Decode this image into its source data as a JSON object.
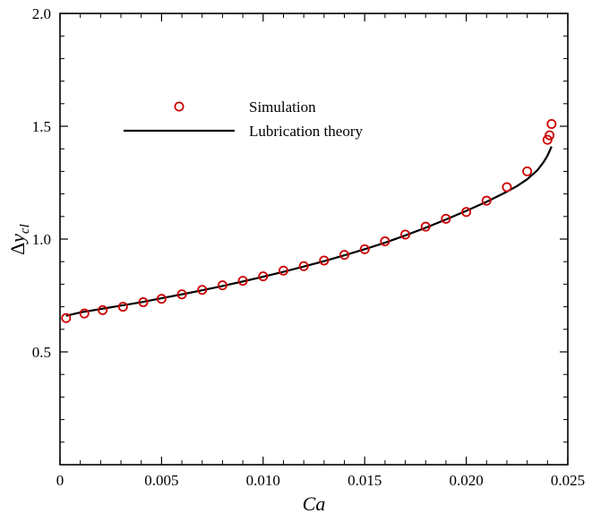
{
  "chart_data": {
    "type": "scatter",
    "x_axis": {
      "label": "Ca",
      "range": [
        0,
        0.025
      ],
      "ticks": [
        0,
        0.005,
        0.01,
        0.015,
        0.02,
        0.025
      ],
      "tick_labels": [
        "0",
        "0.005",
        "0.010",
        "0.015",
        "0.020",
        "0.025"
      ]
    },
    "y_axis": {
      "label_prefix": "Δ",
      "label_main": "y",
      "label_subscript": "cl",
      "range": [
        0,
        2.0
      ],
      "ticks": [
        0.5,
        1.0,
        1.5,
        2.0
      ],
      "tick_labels": [
        "0.5",
        "1.0",
        "1.5",
        "2.0"
      ]
    },
    "grid": false,
    "legend": {
      "placement": "top-left",
      "entries": [
        {
          "label": "Simulation",
          "marker": "circle",
          "color": "#cc0000"
        },
        {
          "label": "Lubrication theory",
          "marker": "line",
          "color": "#000000"
        }
      ]
    },
    "series": [
      {
        "name": "Simulation",
        "kind": "markers",
        "color": "#cc0000",
        "x": [
          0.0003,
          0.0012,
          0.0021,
          0.0031,
          0.0041,
          0.005,
          0.006,
          0.007,
          0.008,
          0.009,
          0.01,
          0.011,
          0.012,
          0.013,
          0.014,
          0.015,
          0.016,
          0.017,
          0.018,
          0.019,
          0.02,
          0.021,
          0.022,
          0.023,
          0.024,
          0.0241,
          0.0242
        ],
        "y": [
          0.65,
          0.67,
          0.685,
          0.7,
          0.72,
          0.735,
          0.755,
          0.775,
          0.795,
          0.815,
          0.835,
          0.86,
          0.88,
          0.905,
          0.93,
          0.955,
          0.99,
          1.02,
          1.055,
          1.09,
          1.12,
          1.17,
          1.23,
          1.3,
          1.44,
          1.46,
          1.51
        ]
      },
      {
        "name": "Lubrication theory",
        "kind": "line",
        "color": "#000000",
        "x": [
          0.0003,
          0.001,
          0.002,
          0.003,
          0.004,
          0.005,
          0.006,
          0.007,
          0.008,
          0.009,
          0.01,
          0.011,
          0.012,
          0.013,
          0.014,
          0.015,
          0.016,
          0.017,
          0.018,
          0.019,
          0.02,
          0.021,
          0.022,
          0.0225,
          0.023,
          0.0235,
          0.0238,
          0.024,
          0.0242
        ],
        "y": [
          0.66,
          0.675,
          0.69,
          0.705,
          0.72,
          0.738,
          0.755,
          0.773,
          0.792,
          0.812,
          0.833,
          0.855,
          0.878,
          0.902,
          0.928,
          0.955,
          0.984,
          1.016,
          1.05,
          1.087,
          1.125,
          1.165,
          1.21,
          1.235,
          1.265,
          1.305,
          1.34,
          1.37,
          1.41
        ]
      }
    ]
  }
}
